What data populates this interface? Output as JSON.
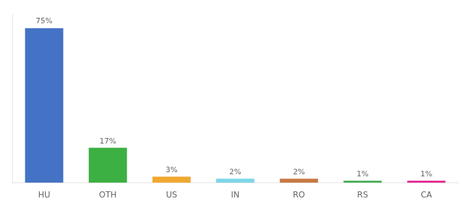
{
  "chart_data": {
    "type": "bar",
    "categories": [
      "HU",
      "OTH",
      "US",
      "IN",
      "RO",
      "RS",
      "CA"
    ],
    "values": [
      75,
      17,
      3,
      2,
      2,
      1,
      1
    ],
    "value_labels": [
      "75%",
      "17%",
      "3%",
      "2%",
      "2%",
      "1%",
      "1%"
    ],
    "colors": [
      "#4472c4",
      "#3cb043",
      "#f0a830",
      "#7dd6e8",
      "#c87941",
      "#3daa50",
      "#e8198a"
    ],
    "ylim": [
      0,
      82
    ],
    "grid": false,
    "data_labels": true,
    "tick_labels": "x"
  }
}
